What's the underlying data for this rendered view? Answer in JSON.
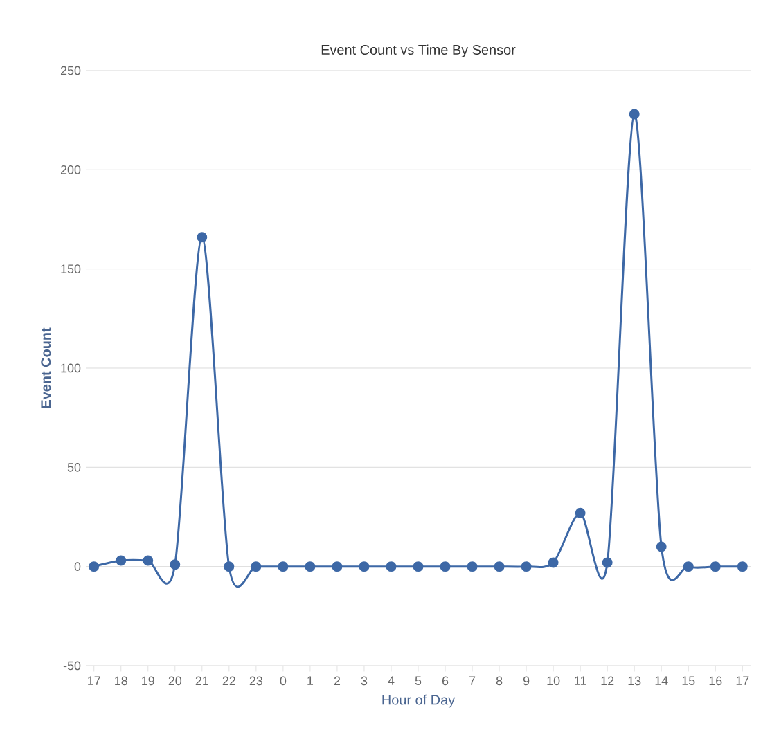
{
  "chart_data": {
    "type": "line",
    "title": "Event Count vs Time By Sensor",
    "xlabel": "Hour of Day",
    "ylabel": "Event Count",
    "categories": [
      "17",
      "18",
      "19",
      "20",
      "21",
      "22",
      "23",
      "0",
      "1",
      "2",
      "3",
      "4",
      "5",
      "6",
      "7",
      "8",
      "9",
      "10",
      "11",
      "12",
      "13",
      "14",
      "15",
      "16",
      "17"
    ],
    "series": [
      {
        "color": "#3d68a6",
        "values": [
          0,
          3,
          3,
          1,
          166,
          0,
          0,
          0,
          0,
          0,
          0,
          0,
          0,
          0,
          0,
          0,
          0,
          2,
          27,
          2,
          228,
          10,
          0,
          0,
          0
        ]
      }
    ],
    "ylim": [
      -50,
      250
    ],
    "yticks": [
      -50,
      0,
      50,
      100,
      150,
      200,
      250
    ],
    "grid": "y",
    "marker": "circle",
    "line_style": "solid"
  }
}
